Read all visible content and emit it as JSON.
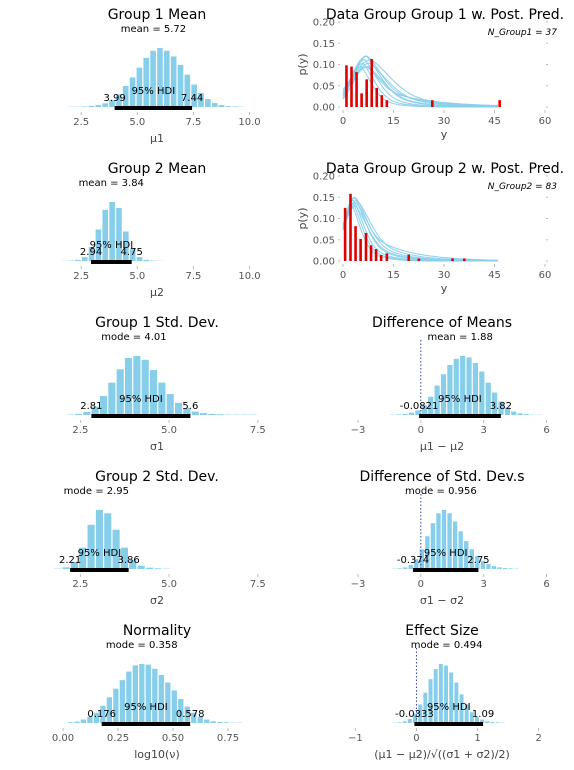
{
  "chart_data": [
    {
      "type": "bar",
      "name": "group1-mean",
      "title": "Group 1 Mean",
      "xlabel": "μ1",
      "xlim": [
        1.2,
        11.0
      ],
      "xticks": [
        2.5,
        5.0,
        7.5,
        10.0
      ],
      "xtick_labels": [
        "2.5",
        "5.0",
        "7.5",
        "10.0"
      ],
      "bins": {
        "start": 1.9,
        "width": 0.305,
        "heights": [
          1,
          1,
          2,
          4,
          7,
          13,
          25,
          45,
          75,
          105,
          140,
          175,
          200,
          210,
          200,
          180,
          150,
          115,
          80,
          50,
          28,
          14,
          7,
          3,
          2,
          1
        ]
      },
      "central_label": "mean = 5.72",
      "central_value": 5.72,
      "hdi": [
        3.99,
        7.44
      ],
      "hdi_labels": [
        "3.99",
        "7.44"
      ],
      "hdi_text": "95% HDI"
    },
    {
      "type": "bar",
      "name": "group2-mean",
      "title": "Group 2 Mean",
      "xlabel": "μ2",
      "xlim": [
        1.2,
        11.0
      ],
      "xticks": [
        2.5,
        5.0,
        7.5,
        10.0
      ],
      "xtick_labels": [
        "2.5",
        "5.0",
        "7.5",
        "10.0"
      ],
      "bins": {
        "start": 1.6,
        "width": 0.305,
        "heights": [
          1,
          2,
          6,
          20,
          70,
          160,
          260,
          300,
          270,
          150,
          60,
          20,
          6,
          2,
          1
        ]
      },
      "central_label": "mean = 3.84",
      "central_value": 3.84,
      "hdi": [
        2.94,
        4.75
      ],
      "hdi_labels": [
        "2.94",
        "4.75"
      ],
      "hdi_text": "95% HDI"
    },
    {
      "type": "bar",
      "name": "group1-std",
      "title": "Group 1 Std. Dev.",
      "xlabel": "σ1",
      "xlim": [
        1.7,
        7.9
      ],
      "xticks": [
        2.5,
        5.0,
        7.5
      ],
      "xtick_labels": [
        "2.5",
        "5.0",
        "7.5"
      ],
      "bins": {
        "start": 2.1,
        "width": 0.235,
        "heights": [
          1,
          3,
          8,
          22,
          50,
          85,
          120,
          150,
          155,
          145,
          118,
          85,
          55,
          32,
          18,
          9,
          5,
          3,
          2,
          1,
          1,
          1,
          1
        ]
      },
      "central_label": "mode = 4.01",
      "central_value": 4.01,
      "hdi": [
        2.81,
        5.6
      ],
      "hdi_labels": [
        "2.81",
        "5.6"
      ],
      "hdi_text": "95% HDI"
    },
    {
      "type": "bar",
      "name": "group2-std",
      "title": "Group 2 Std. Dev.",
      "xlabel": "σ2",
      "xlim": [
        1.7,
        7.9
      ],
      "xticks": [
        2.5,
        5.0,
        7.5
      ],
      "xtick_labels": [
        "2.5",
        "5.0",
        "7.5"
      ],
      "bins": {
        "start": 1.75,
        "width": 0.235,
        "heights": [
          1,
          5,
          22,
          65,
          135,
          180,
          170,
          120,
          65,
          28,
          10,
          4,
          2,
          1
        ]
      },
      "central_label": "mode = 2.95",
      "central_value": 2.95,
      "hdi": [
        2.21,
        3.86
      ],
      "hdi_labels": [
        "2.21",
        "3.86"
      ],
      "hdi_text": "95% HDI"
    },
    {
      "type": "bar",
      "name": "normality",
      "title": "Normality",
      "xlabel": "log10(ν)",
      "xlim": [
        -0.05,
        0.95
      ],
      "xticks": [
        0.0,
        0.25,
        0.5,
        0.75
      ],
      "xtick_labels": [
        "0.00",
        "0.25",
        "0.50",
        "0.75"
      ],
      "bins": {
        "start": 0.02,
        "width": 0.0295,
        "heights": [
          2,
          4,
          10,
          18,
          30,
          50,
          75,
          100,
          125,
          150,
          168,
          172,
          170,
          158,
          140,
          118,
          95,
          70,
          48,
          30,
          18,
          10,
          5,
          3,
          2,
          1,
          1
        ]
      },
      "central_label": "mode = 0.358",
      "central_value": 0.358,
      "hdi": [
        0.176,
        0.578
      ],
      "hdi_labels": [
        "0.176",
        "0.578"
      ],
      "hdi_text": "95% HDI"
    },
    {
      "type": "bar",
      "name": "difference-of-means",
      "title": "Difference of Means",
      "xlabel": "μ1 − μ2",
      "xlim": [
        -4.0,
        6.5
      ],
      "xticks": [
        -3,
        0,
        3,
        6
      ],
      "xtick_labels": [
        "−3",
        "0",
        "3",
        "6"
      ],
      "bins": {
        "start": -1.5,
        "width": 0.305,
        "heights": [
          1,
          2,
          4,
          8,
          16,
          35,
          65,
          105,
          145,
          178,
          200,
          210,
          205,
          185,
          155,
          115,
          80,
          48,
          26,
          12,
          6,
          3,
          1,
          1
        ]
      },
      "central_label": "mean = 1.88",
      "central_value": 1.88,
      "ref_line": 0,
      "hdi": [
        -0.0821,
        3.82
      ],
      "hdi_labels": [
        "-0.0821",
        "3.82"
      ],
      "hdi_text": "95% HDI"
    },
    {
      "type": "bar",
      "name": "difference-of-std",
      "title": "Difference of Std. Dev.s",
      "xlabel": "σ1 − σ2",
      "xlim": [
        -4.0,
        6.5
      ],
      "xticks": [
        -3,
        0,
        3,
        6
      ],
      "xtick_labels": [
        "−3",
        "0",
        "3",
        "6"
      ],
      "bins": {
        "start": -1.4,
        "width": 0.265,
        "heights": [
          1,
          2,
          5,
          12,
          30,
          60,
          100,
          140,
          170,
          180,
          170,
          145,
          115,
          85,
          60,
          40,
          25,
          15,
          9,
          5,
          3,
          2,
          1
        ]
      },
      "central_label": "mode = 0.956",
      "central_value": 0.956,
      "ref_line": 0,
      "hdi": [
        -0.374,
        2.75
      ],
      "hdi_labels": [
        "-0.374",
        "2.75"
      ],
      "hdi_text": "95% HDI"
    },
    {
      "type": "bar",
      "name": "effect-size",
      "title": "Effect Size",
      "xlabel": "(μ1 − μ2)/√((σ1 + σ2)/2)",
      "xlim": [
        -1.3,
        2.3
      ],
      "xticks": [
        -1,
        0,
        1,
        2
      ],
      "xtick_labels": [
        "−1",
        "0",
        "1",
        "2"
      ],
      "bins": {
        "start": -0.4,
        "width": 0.0845,
        "heights": [
          1,
          2,
          5,
          12,
          28,
          55,
          90,
          130,
          160,
          175,
          170,
          150,
          120,
          85,
          55,
          32,
          18,
          10,
          5,
          3,
          2,
          1
        ]
      },
      "central_label": "mode = 0.494",
      "central_value": 0.494,
      "ref_line": 0,
      "hdi": [
        -0.0333,
        1.09
      ],
      "hdi_labels": [
        "-0.0333",
        "1.09"
      ],
      "hdi_text": "95% HDI"
    },
    {
      "type": "bar",
      "name": "ppc-group1",
      "title": "Data Group Group 1 w. Post. Pred.",
      "xlabel": "y",
      "ylabel": "p(y)",
      "legend": "N_Group1 = 37",
      "xlim": [
        0,
        60
      ],
      "ylim": [
        0,
        0.2
      ],
      "xticks": [
        0,
        15,
        30,
        45,
        60
      ],
      "xtick_labels": [
        "0",
        "15",
        "30",
        "45",
        "60"
      ],
      "yticks": [
        0.0,
        0.05,
        0.1,
        0.15,
        0.2
      ],
      "ytick_labels": [
        "0.00",
        "0.05",
        "0.10",
        "0.15",
        "0.20"
      ],
      "data_bars": {
        "x": [
          1,
          2.5,
          4,
          5.5,
          7,
          8.5,
          10,
          11.5,
          13,
          26.5,
          46.5
        ],
        "y": [
          0.098,
          0.095,
          0.082,
          0.032,
          0.065,
          0.113,
          0.045,
          0.028,
          0.016,
          0.016,
          0.016
        ]
      },
      "ppc": {
        "curves": [
          [
            5.5,
            3.2,
            1.5
          ],
          [
            6.0,
            3.6,
            1.8
          ],
          [
            6.5,
            4.0,
            2.2
          ],
          [
            7.0,
            4.5,
            2.8
          ],
          [
            7.5,
            5.0,
            3.4
          ],
          [
            8.0,
            5.5,
            4.0
          ],
          [
            8.5,
            6.0,
            5.0
          ],
          [
            7.2,
            4.2,
            6.0
          ],
          [
            6.8,
            3.8,
            10.0
          ]
        ],
        "peak_range": [
          0.095,
          0.12
        ]
      }
    },
    {
      "type": "bar",
      "name": "ppc-group2",
      "title": "Data Group Group 2 w. Post. Pred.",
      "xlabel": "y",
      "ylabel": "p(y)",
      "legend": "N_Group2 = 83",
      "xlim": [
        0,
        60
      ],
      "ylim": [
        0,
        0.2
      ],
      "xticks": [
        0,
        15,
        30,
        45,
        60
      ],
      "xtick_labels": [
        "0",
        "15",
        "30",
        "45",
        "60"
      ],
      "yticks": [
        0.0,
        0.05,
        0.1,
        0.15,
        0.2
      ],
      "ytick_labels": [
        "0.00",
        "0.05",
        "0.10",
        "0.15",
        "0.20"
      ],
      "data_bars": {
        "x": [
          0.6,
          2.2,
          3.7,
          5.2,
          6.8,
          8.3,
          9.8,
          11.3,
          13,
          19.5,
          22.5,
          32.5,
          36
        ],
        "y": [
          0.125,
          0.158,
          0.082,
          0.052,
          0.066,
          0.037,
          0.028,
          0.014,
          0.018,
          0.015,
          0.006,
          0.006,
          0.006
        ]
      },
      "ppc": {
        "curves": [
          [
            2.8,
            2.6,
            1.5
          ],
          [
            3.0,
            2.8,
            1.8
          ],
          [
            3.2,
            3.0,
            2.2
          ],
          [
            3.5,
            3.3,
            2.8
          ],
          [
            3.8,
            3.6,
            3.4
          ],
          [
            4.0,
            3.8,
            4.0
          ],
          [
            4.2,
            4.0,
            5.0
          ],
          [
            3.6,
            3.0,
            8.0
          ]
        ],
        "peak_range": [
          0.13,
          0.15
        ]
      }
    }
  ]
}
